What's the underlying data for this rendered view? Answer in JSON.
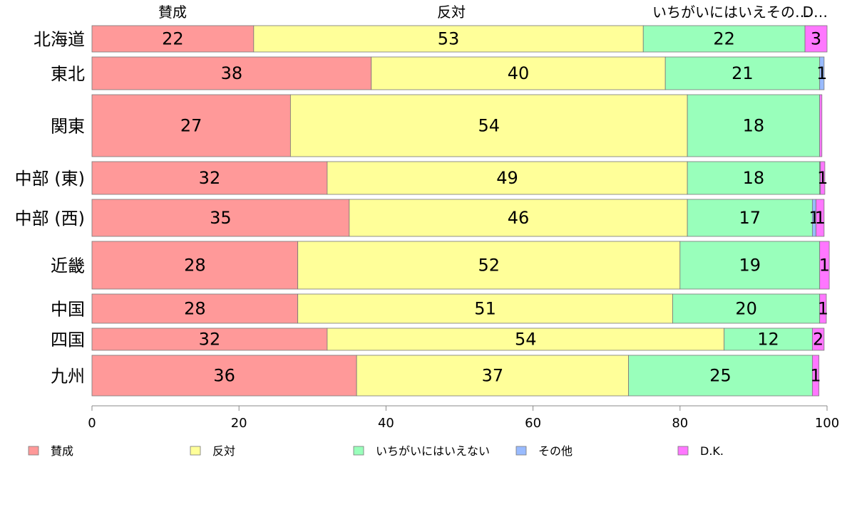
{
  "chart_data": {
    "type": "bar",
    "orientation": "horizontal",
    "stacked": true,
    "categories": [
      "北海道",
      "東北",
      "関東",
      "中部 (東)",
      "中部 (西)",
      "近畿",
      "中国",
      "四国",
      "九州"
    ],
    "series": [
      {
        "name": "賛成",
        "color": "#ff9999",
        "values": [
          22,
          38,
          27,
          32,
          35,
          28,
          28,
          32,
          36
        ],
        "labels": [
          "22",
          "38",
          "27",
          "32",
          "35",
          "28",
          "28",
          "32",
          "36"
        ]
      },
      {
        "name": "反対",
        "color": "#ffff99",
        "values": [
          53,
          40,
          54,
          49,
          46,
          52,
          51,
          54,
          37
        ],
        "labels": [
          "53",
          "40",
          "54",
          "49",
          "46",
          "52",
          "51",
          "54",
          "37"
        ]
      },
      {
        "name": "いちがいにはいえない",
        "color": "#99ffbb",
        "values": [
          22,
          21,
          18,
          18,
          17,
          19,
          20,
          12,
          25
        ],
        "labels": [
          "22",
          "21",
          "18",
          "18",
          "17",
          "19",
          "20",
          "12",
          "25"
        ]
      },
      {
        "name": "その他",
        "color": "#99bbff",
        "values": [
          0,
          0.6,
          0,
          0.1,
          0.5,
          0,
          0,
          0,
          0
        ],
        "labels": [
          "",
          "1",
          "",
          "",
          "1",
          "",
          "",
          "",
          ""
        ]
      },
      {
        "name": "D.K.",
        "color": "#ff77ff",
        "values": [
          3,
          0,
          0.3,
          0.6,
          1.1,
          1.3,
          0.9,
          1.6,
          0.9
        ],
        "labels": [
          "3",
          "",
          "",
          "1",
          "1",
          "1",
          "1",
          "2",
          "1"
        ]
      }
    ],
    "bar_weights": [
      37,
      46,
      87,
      46,
      52,
      67,
      41,
      31,
      57
    ],
    "top_labels": [
      "賛成",
      "反対",
      "いちがいにはいえその…",
      "D…"
    ],
    "xticks": [
      "0",
      "20",
      "40",
      "60",
      "80",
      "100"
    ],
    "xlim": [
      0,
      100
    ],
    "legend": {
      "position": "bottom"
    },
    "grid": false,
    "title": "",
    "xlabel": "",
    "ylabel": ""
  }
}
